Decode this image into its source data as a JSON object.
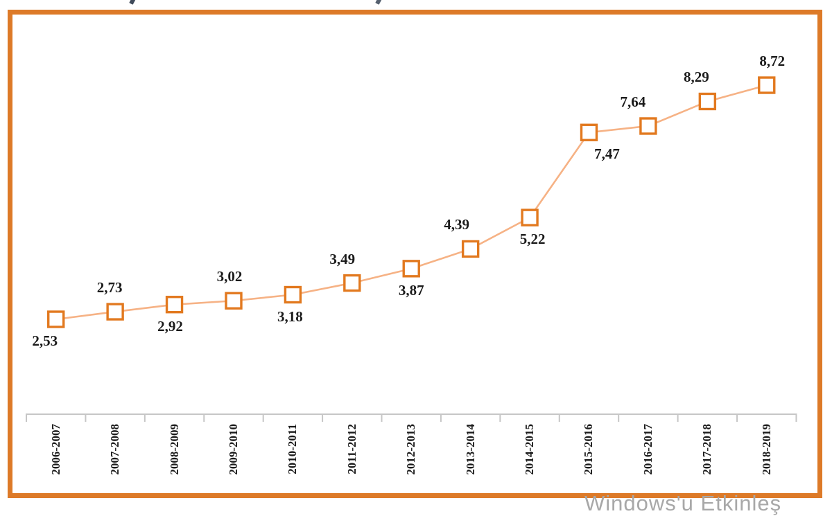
{
  "watermark": {
    "text": "Windows'u Etkinleş",
    "color": "#a8a8a8"
  },
  "colors": {
    "frame": "#dd7a28",
    "line": "#f6b285",
    "marker_border": "#e2791f",
    "marker_fill": "#ffffff",
    "data_label": "#1b1b1b",
    "axis": "#c6c6c6",
    "axis_label": "#1b1b1b"
  },
  "chart_data": {
    "type": "line",
    "marker": "square-outline",
    "title": "",
    "xlabel": "",
    "ylabel": "",
    "grid": false,
    "legend": null,
    "y_axis_visible": false,
    "categories": [
      "2006-2007",
      "2007-2008",
      "2008-2009",
      "2009-2010",
      "2010-2011",
      "2011-2012",
      "2012-2013",
      "2013-2014",
      "2014-2015",
      "2015-2016",
      "2016-2017",
      "2017-2018",
      "2018-2019"
    ],
    "values": [
      2.53,
      2.73,
      2.92,
      3.02,
      3.18,
      3.49,
      3.87,
      4.39,
      5.22,
      7.47,
      7.64,
      8.29,
      8.72
    ],
    "labels": [
      "2,53",
      "2,73",
      "2,92",
      "3,02",
      "3,18",
      "3,49",
      "3,87",
      "4,39",
      "5,22",
      "7,47",
      "7,64",
      "8,29",
      "8,72"
    ],
    "label_positions": [
      "below",
      "above",
      "below",
      "above",
      "below",
      "above",
      "below",
      "above",
      "below",
      "below",
      "above",
      "above",
      "above"
    ],
    "label_offsets": [
      -16,
      -8,
      -6,
      -6,
      -4,
      -14,
      0,
      -20,
      4,
      26,
      -22,
      -16,
      8
    ]
  }
}
